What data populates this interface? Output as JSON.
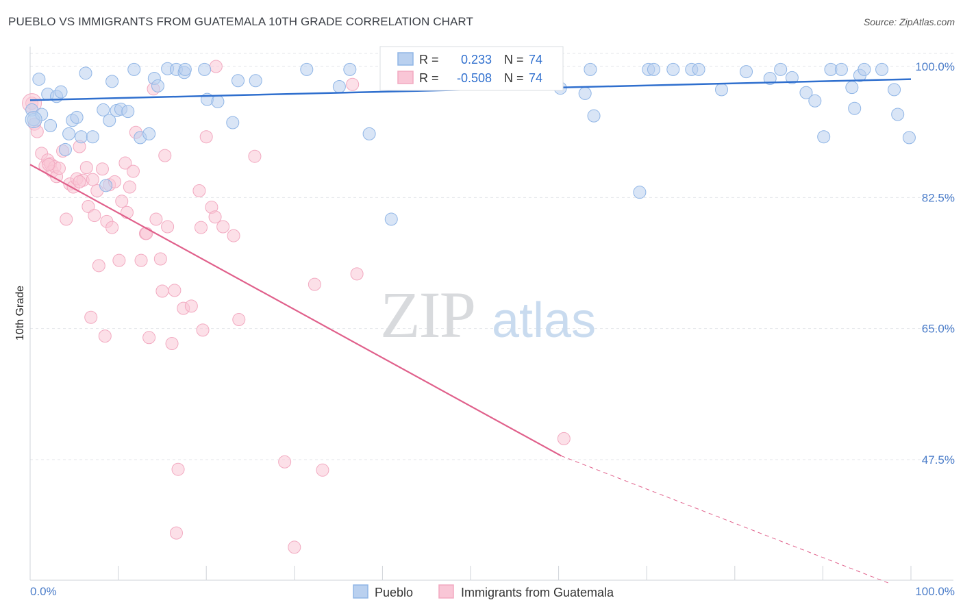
{
  "title": "PUEBLO VS IMMIGRANTS FROM GUATEMALA 10TH GRADE CORRELATION CHART",
  "source": "Source: ZipAtlas.com",
  "watermark": {
    "zip": "ZIP",
    "atlas": "atlas"
  },
  "colors": {
    "blue": "#8fb5e6",
    "blue_line": "#2f6fce",
    "pink": "#f2a9c0",
    "pink_line": "#e0608b",
    "grid": "#e3e6ea",
    "axis_text": "#4a7cc9"
  },
  "legend": {
    "rows": [
      {
        "r_label": "R =",
        "r_value": "0.233",
        "n_label": "N =",
        "n_value": "74"
      },
      {
        "r_label": "R =",
        "r_value": "-0.508",
        "n_label": "N =",
        "n_value": "74"
      }
    ]
  },
  "bottom_legend": [
    "Pueblo",
    "Immigrants from Guatemala"
  ],
  "chart_data": {
    "type": "scatter",
    "title": "PUEBLO VS IMMIGRANTS FROM GUATEMALA 10TH GRADE CORRELATION CHART",
    "xlabel": "",
    "ylabel": "10th Grade",
    "xlim": [
      0,
      100
    ],
    "ylim": [
      31,
      102
    ],
    "y_ticks": [
      {
        "value": 100.0,
        "label": "100.0%"
      },
      {
        "value": 82.5,
        "label": "82.5%"
      },
      {
        "value": 65.0,
        "label": "65.0%"
      },
      {
        "value": 47.5,
        "label": "47.5%"
      }
    ],
    "x_tick_labels": {
      "left": "0.0%",
      "right": "100.0%"
    },
    "grid": true,
    "legend_position": "top-center",
    "series": [
      {
        "name": "Pueblo",
        "color": "#8fb5e6",
        "trend": {
          "x": [
            0,
            100
          ],
          "y": [
            95.5,
            98.3
          ],
          "color": "#2f6fce"
        },
        "points": [
          [
            0.2,
            94.2
          ],
          [
            0.4,
            92.9
          ],
          [
            1.3,
            93.6
          ],
          [
            2.0,
            96.3
          ],
          [
            2.3,
            92.1
          ],
          [
            3.0,
            96.0
          ],
          [
            3.5,
            96.6
          ],
          [
            4.0,
            88.9
          ],
          [
            4.4,
            91.0
          ],
          [
            4.8,
            92.8
          ],
          [
            5.3,
            93.2
          ],
          [
            5.8,
            90.6
          ],
          [
            6.3,
            99.1
          ],
          [
            7.1,
            90.6
          ],
          [
            8.3,
            94.2
          ],
          [
            8.6,
            84.1
          ],
          [
            9.0,
            92.8
          ],
          [
            9.3,
            98.0
          ],
          [
            9.8,
            94.1
          ],
          [
            10.3,
            94.3
          ],
          [
            11.1,
            94.0
          ],
          [
            11.8,
            99.6
          ],
          [
            12.5,
            90.5
          ],
          [
            13.5,
            91.0
          ],
          [
            14.1,
            98.4
          ],
          [
            14.5,
            97.4
          ],
          [
            15.6,
            99.7
          ],
          [
            16.6,
            99.6
          ],
          [
            17.5,
            99.2
          ],
          [
            17.6,
            99.6
          ],
          [
            19.8,
            99.6
          ],
          [
            20.1,
            95.6
          ],
          [
            21.3,
            95.3
          ],
          [
            23.0,
            92.5
          ],
          [
            23.6,
            98.1
          ],
          [
            25.6,
            98.1
          ],
          [
            31.4,
            99.6
          ],
          [
            35.1,
            97.3
          ],
          [
            36.3,
            99.6
          ],
          [
            38.5,
            91.0
          ],
          [
            41.0,
            79.6
          ],
          [
            42.1,
            99.6
          ],
          [
            47.8,
            99.6
          ],
          [
            63.6,
            99.6
          ],
          [
            60.2,
            97.1
          ],
          [
            63.0,
            96.4
          ],
          [
            64.0,
            93.4
          ],
          [
            69.2,
            83.2
          ],
          [
            70.2,
            99.6
          ],
          [
            70.8,
            99.6
          ],
          [
            73.0,
            99.6
          ],
          [
            75.1,
            99.6
          ],
          [
            75.9,
            99.6
          ],
          [
            78.5,
            96.9
          ],
          [
            81.3,
            99.3
          ],
          [
            84.0,
            98.4
          ],
          [
            85.2,
            99.6
          ],
          [
            86.5,
            98.5
          ],
          [
            88.1,
            96.5
          ],
          [
            89.1,
            95.4
          ],
          [
            90.1,
            90.6
          ],
          [
            90.9,
            99.6
          ],
          [
            92.1,
            99.6
          ],
          [
            93.3,
            97.2
          ],
          [
            93.6,
            94.4
          ],
          [
            94.2,
            98.8
          ],
          [
            94.7,
            99.6
          ],
          [
            96.7,
            99.6
          ],
          [
            98.1,
            96.9
          ],
          [
            98.5,
            93.6
          ],
          [
            99.8,
            90.5
          ],
          [
            1.0,
            98.3
          ],
          [
            42.5,
            99.6
          ],
          [
            57.1,
            99.6
          ]
        ]
      },
      {
        "name": "Immigrants from Guatemala",
        "color": "#f2a9c0",
        "trend": {
          "x": [
            0,
            60.3
          ],
          "y": [
            86.9,
            48.0
          ],
          "color": "#e0608b",
          "dashed_to": {
            "x": 97.5,
            "y": 31
          }
        },
        "points": [
          [
            0.2,
            95.1
          ],
          [
            0.5,
            92.3
          ],
          [
            0.8,
            91.3
          ],
          [
            1.3,
            88.4
          ],
          [
            1.7,
            86.7
          ],
          [
            2.0,
            87.5
          ],
          [
            2.3,
            87.0
          ],
          [
            2.5,
            86.0
          ],
          [
            2.8,
            86.6
          ],
          [
            3.0,
            85.3
          ],
          [
            3.3,
            86.4
          ],
          [
            3.7,
            88.7
          ],
          [
            4.1,
            79.6
          ],
          [
            4.5,
            84.3
          ],
          [
            4.9,
            83.9
          ],
          [
            5.3,
            85.0
          ],
          [
            5.6,
            89.3
          ],
          [
            6.0,
            84.8
          ],
          [
            6.4,
            86.5
          ],
          [
            6.6,
            81.3
          ],
          [
            6.9,
            66.5
          ],
          [
            7.1,
            84.9
          ],
          [
            7.3,
            80.1
          ],
          [
            7.6,
            83.4
          ],
          [
            7.8,
            73.4
          ],
          [
            8.2,
            86.3
          ],
          [
            8.5,
            64.0
          ],
          [
            8.7,
            79.3
          ],
          [
            9.0,
            84.2
          ],
          [
            9.3,
            78.5
          ],
          [
            9.6,
            84.6
          ],
          [
            10.1,
            74.1
          ],
          [
            10.4,
            82.0
          ],
          [
            10.8,
            87.1
          ],
          [
            11.0,
            80.5
          ],
          [
            11.3,
            83.9
          ],
          [
            11.7,
            86.0
          ],
          [
            12.0,
            91.2
          ],
          [
            12.6,
            74.1
          ],
          [
            13.1,
            77.7
          ],
          [
            13.5,
            63.8
          ],
          [
            14.0,
            97.0
          ],
          [
            14.3,
            79.6
          ],
          [
            14.8,
            74.3
          ],
          [
            15.0,
            70.0
          ],
          [
            15.3,
            88.1
          ],
          [
            15.6,
            78.6
          ],
          [
            16.1,
            63.0
          ],
          [
            16.4,
            70.1
          ],
          [
            16.8,
            46.2
          ],
          [
            16.6,
            37.7
          ],
          [
            17.4,
            67.7
          ],
          [
            18.3,
            68.0
          ],
          [
            19.2,
            83.4
          ],
          [
            19.4,
            78.5
          ],
          [
            19.6,
            64.8
          ],
          [
            20.0,
            90.6
          ],
          [
            20.6,
            81.2
          ],
          [
            21.0,
            79.9
          ],
          [
            21.9,
            78.6
          ],
          [
            23.1,
            77.4
          ],
          [
            23.7,
            66.2
          ],
          [
            25.5,
            88.0
          ],
          [
            28.9,
            47.2
          ],
          [
            30.0,
            35.8
          ],
          [
            32.3,
            70.9
          ],
          [
            33.2,
            46.1
          ],
          [
            36.6,
            97.6
          ],
          [
            37.1,
            72.3
          ],
          [
            60.6,
            50.3
          ],
          [
            21.1,
            100.0
          ],
          [
            13.2,
            77.7
          ],
          [
            5.6,
            84.6
          ],
          [
            2.1,
            86.9
          ]
        ]
      }
    ]
  }
}
